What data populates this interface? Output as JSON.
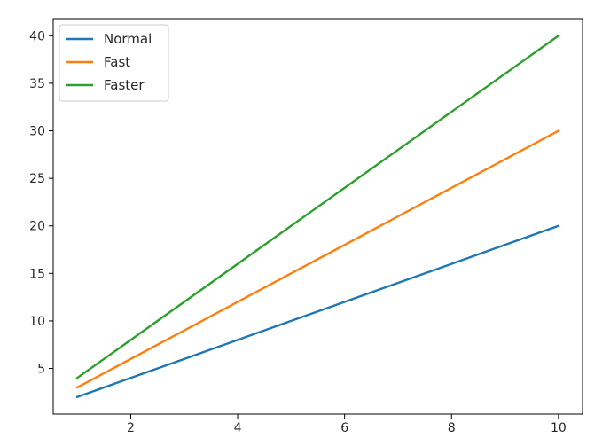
{
  "chart_data": {
    "type": "line",
    "title": "",
    "xlabel": "",
    "ylabel": "",
    "x": [
      1,
      2,
      3,
      4,
      5,
      6,
      7,
      8,
      9,
      10
    ],
    "series": [
      {
        "name": "Normal",
        "color": "#1f77b4",
        "values": [
          2,
          4,
          6,
          8,
          10,
          12,
          14,
          16,
          18,
          20
        ]
      },
      {
        "name": "Fast",
        "color": "#ff7f0e",
        "values": [
          3,
          6,
          9,
          12,
          15,
          18,
          21,
          24,
          27,
          30
        ]
      },
      {
        "name": "Faster",
        "color": "#2ca02c",
        "values": [
          4,
          8,
          12,
          16,
          20,
          24,
          28,
          32,
          36,
          40
        ]
      }
    ],
    "xlim": [
      0.55,
      10.45
    ],
    "ylim": [
      0.2,
      41.8
    ],
    "xticks": [
      2,
      4,
      6,
      8,
      10
    ],
    "yticks": [
      5,
      10,
      15,
      20,
      25,
      30,
      35,
      40
    ],
    "grid": false,
    "legend": "upper-left"
  }
}
